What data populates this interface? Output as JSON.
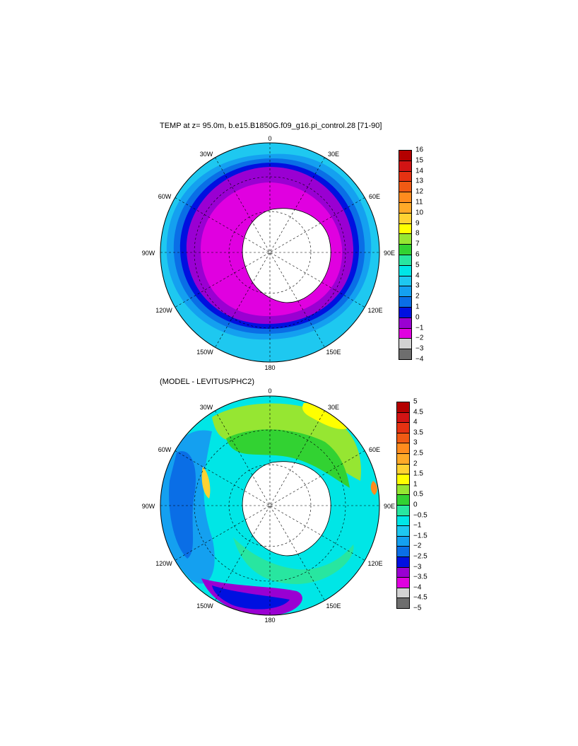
{
  "panel1": {
    "title": "TEMP at z=  95.0m, b.e15.B1850G.f09_g16.pi_control.28 [71-90]",
    "longitude_labels": [
      "0",
      "30E",
      "60E",
      "90E",
      "120E",
      "150E",
      "180",
      "150W",
      "120W",
      "90W",
      "60W",
      "30W"
    ],
    "colorbar": {
      "colors": [
        "#6e6e6e",
        "#d2d2d2",
        "#e000e0",
        "#9a00d2",
        "#0010e0",
        "#0a6ee6",
        "#14a0f0",
        "#1ec8f0",
        "#00e6e6",
        "#28e6a0",
        "#32d232",
        "#96e632",
        "#ffff00",
        "#ffd232",
        "#ffaa28",
        "#ff8c1e",
        "#f05a14",
        "#e63212",
        "#d21414",
        "#b40000"
      ],
      "tick_labels": [
        "−4",
        "−3",
        "−2",
        "−1",
        "0",
        "1",
        "2",
        "3",
        "4",
        "5",
        "6",
        "7",
        "8",
        "9",
        "10",
        "11",
        "12",
        "13",
        "14",
        "15",
        "16"
      ]
    }
  },
  "panel2": {
    "title": "(MODEL - LEVITUS/PHC2)",
    "longitude_labels": [
      "0",
      "30E",
      "60E",
      "90E",
      "120E",
      "150E",
      "180",
      "150W",
      "120W",
      "90W",
      "60W",
      "30W"
    ],
    "colorbar": {
      "colors": [
        "#6e6e6e",
        "#d2d2d2",
        "#e000e0",
        "#9a00d2",
        "#0010e0",
        "#0a6ee6",
        "#14a0f0",
        "#1ec8f0",
        "#00e6e6",
        "#28e6a0",
        "#32d232",
        "#96e632",
        "#ffff00",
        "#ffd232",
        "#ffaa28",
        "#ff8c1e",
        "#f05a14",
        "#e63212",
        "#d21414",
        "#b40000"
      ],
      "tick_labels": [
        "−5",
        "−4.5",
        "−4",
        "−3.5",
        "−3",
        "−2.5",
        "−2",
        "−1.5",
        "−1",
        "−0.5",
        "0",
        "0.5",
        "1",
        "1.5",
        "2",
        "2.5",
        "3",
        "3.5",
        "4",
        "4.5",
        "5"
      ]
    }
  }
}
